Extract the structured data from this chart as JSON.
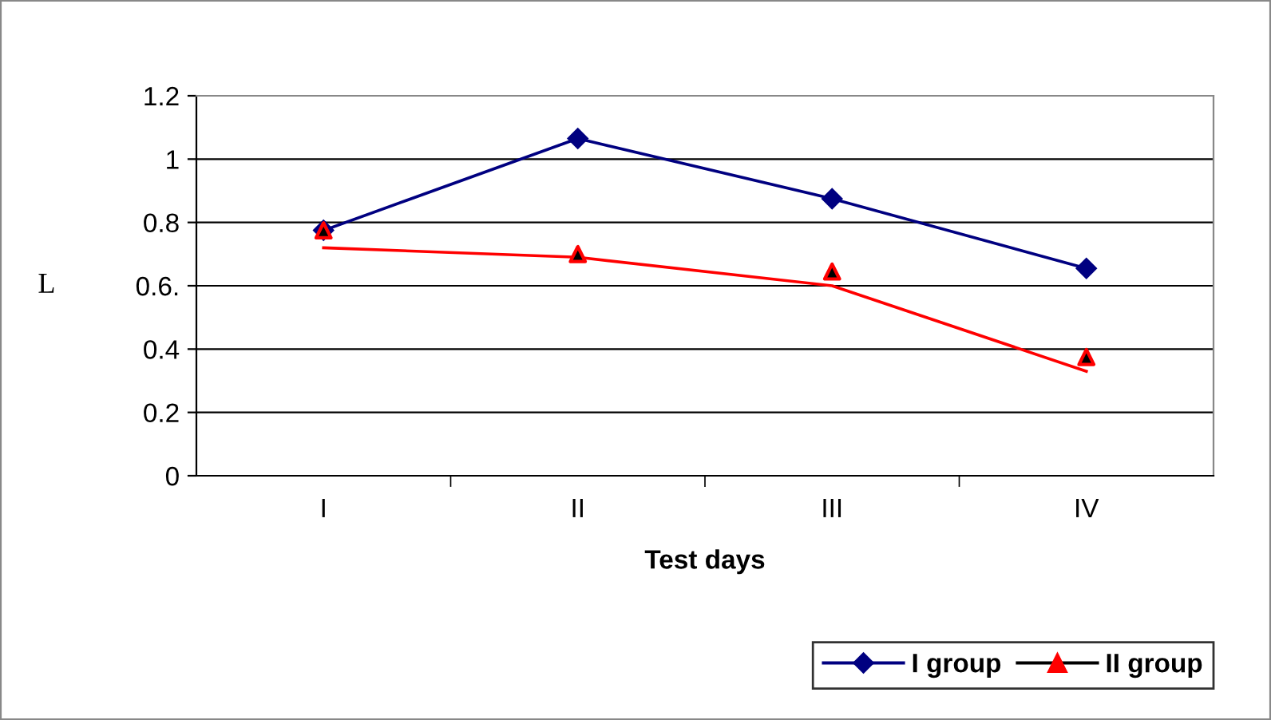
{
  "chart_data": {
    "type": "line",
    "xlabel": "Test days",
    "ylabel": "L",
    "categories": [
      "I",
      "II",
      "III",
      "IV"
    ],
    "series": [
      {
        "name": "I group",
        "color": "#000080",
        "values": [
          0.775,
          1.065,
          0.875,
          0.655
        ],
        "marker": "diamond"
      },
      {
        "name": "II group",
        "type": "scatter",
        "color": "#ff0000",
        "values": [
          0.775,
          0.7,
          0.645,
          0.375
        ],
        "marker": "triangle"
      },
      {
        "color": "#ff0000",
        "values": [
          0.72,
          0.69,
          0.6,
          0.33
        ],
        "marker": "none"
      }
    ],
    "ylim": [
      0,
      1.2
    ],
    "yticks": [
      0,
      0.2,
      0.4,
      {
        "value": 0.6,
        "label": "0.6."
      },
      0.8,
      1,
      1.2
    ],
    "grid": "y",
    "legend": "bottom right"
  }
}
